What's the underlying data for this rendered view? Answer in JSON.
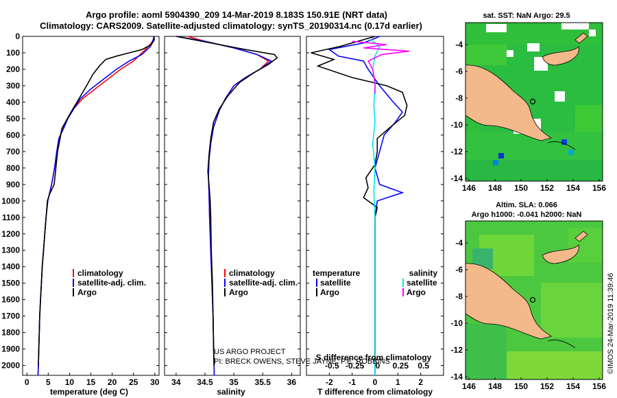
{
  "header": {
    "line1": "Argo profile: aoml 5904390_209 14-Mar-2019 8.183S 150.91E (NRT data)",
    "line2": "Climatology: CARS2009. Satellite-adjusted climatology: synTS_20190314.nc (0.17d earlier)"
  },
  "colors": {
    "climatology": "#ff0000",
    "satellite": "#0000ff",
    "argo": "#000000",
    "sat_salinity": "#00e5ee",
    "argo_salinity_diff": "#ff00ff",
    "land": "#f4b98a"
  },
  "credits": {
    "project": "US ARGO PROJECT",
    "pi": "PI: BRECK OWENS, STEVE JAYNE, P.E. ROBBINS",
    "timestamp": "©IMOS 24-Mar-2019 11:39:46"
  },
  "chart_data": [
    {
      "type": "line",
      "id": "temperature",
      "xlabel": "temperature (deg C)",
      "xlim": [
        -1,
        31
      ],
      "xticks": [
        "0",
        "5",
        "10",
        "15",
        "20",
        "25",
        "30"
      ],
      "ylim": [
        0,
        2060
      ],
      "yticks": [
        "0",
        "100",
        "200",
        "300",
        "400",
        "500",
        "600",
        "700",
        "800",
        "900",
        "1000",
        "1100",
        "1200",
        "1300",
        "1400",
        "1500",
        "1600",
        "1700",
        "1800",
        "1900",
        "2000"
      ],
      "legend": [
        "climatology",
        "satellite-adj. clim.",
        "Argo"
      ],
      "series": [
        {
          "name": "climatology",
          "points": [
            [
              29.9,
              0
            ],
            [
              29.5,
              30
            ],
            [
              28.5,
              60
            ],
            [
              27,
              100
            ],
            [
              25,
              150
            ],
            [
              22,
              200
            ],
            [
              19,
              260
            ],
            [
              16,
              320
            ],
            [
              13,
              380
            ],
            [
              11,
              440
            ],
            [
              9.5,
              500
            ],
            [
              8.5,
              560
            ],
            [
              7.5,
              620
            ],
            [
              7,
              700
            ],
            [
              6.5,
              800
            ],
            [
              5.8,
              900
            ],
            [
              4.9,
              1000
            ],
            [
              4.5,
              1100
            ],
            [
              4.2,
              1200
            ],
            [
              3.9,
              1300
            ],
            [
              3.6,
              1400
            ],
            [
              3.4,
              1500
            ],
            [
              3.2,
              1600
            ],
            [
              3,
              1700
            ],
            [
              2.9,
              1800
            ],
            [
              2.8,
              1900
            ],
            [
              2.7,
              2000
            ],
            [
              2.6,
              2060
            ]
          ]
        },
        {
          "name": "satellite-adj. clim.",
          "points": [
            [
              29.9,
              0
            ],
            [
              29.6,
              20
            ],
            [
              29,
              60
            ],
            [
              27,
              110
            ],
            [
              24,
              150
            ],
            [
              21,
              200
            ],
            [
              18,
              260
            ],
            [
              15,
              320
            ],
            [
              12.5,
              380
            ],
            [
              11,
              440
            ],
            [
              9.6,
              500
            ],
            [
              8.6,
              560
            ],
            [
              7.5,
              620
            ],
            [
              7,
              700
            ],
            [
              6.5,
              800
            ],
            [
              5.8,
              900
            ],
            [
              4.9,
              1000
            ],
            [
              4.5,
              1100
            ],
            [
              4.2,
              1200
            ],
            [
              3.9,
              1300
            ],
            [
              3.6,
              1400
            ],
            [
              3.4,
              1500
            ],
            [
              3.2,
              1600
            ],
            [
              3,
              1700
            ],
            [
              2.9,
              1800
            ],
            [
              2.8,
              1900
            ],
            [
              2.7,
              2000
            ],
            [
              2.6,
              2060
            ]
          ]
        },
        {
          "name": "Argo",
          "points": [
            [
              29.7,
              0
            ],
            [
              29.9,
              20
            ],
            [
              29.2,
              50
            ],
            [
              27,
              80
            ],
            [
              24,
              100
            ],
            [
              21,
              120
            ],
            [
              18.5,
              140
            ],
            [
              17,
              180
            ],
            [
              15.5,
              230
            ],
            [
              14,
              300
            ],
            [
              12.2,
              380
            ],
            [
              10.8,
              440
            ],
            [
              9.5,
              500
            ],
            [
              8.2,
              560
            ],
            [
              7.8,
              620
            ],
            [
              7.2,
              700
            ],
            [
              6.8,
              800
            ],
            [
              6.4,
              900
            ],
            [
              5.3,
              960
            ],
            [
              4.8,
              1000
            ],
            [
              4.5,
              1100
            ],
            [
              4.2,
              1200
            ],
            [
              3.9,
              1300
            ],
            [
              3.6,
              1400
            ],
            [
              3.4,
              1500
            ],
            [
              3.2,
              1600
            ],
            [
              3,
              1700
            ],
            [
              2.9,
              1800
            ],
            [
              2.8,
              1900
            ],
            [
              2.7,
              2000
            ]
          ]
        }
      ]
    },
    {
      "type": "line",
      "id": "salinity",
      "xlabel": "salinity",
      "xlim": [
        33.8,
        36.15
      ],
      "xticks": [
        "34",
        "34.5",
        "35",
        "35.5",
        "36"
      ],
      "ylim": [
        0,
        2060
      ],
      "legend": [
        "climatology",
        "satellite-adj. clim.",
        "Argo"
      ],
      "series": [
        {
          "name": "climatology",
          "points": [
            [
              34.2,
              0
            ],
            [
              34.5,
              30
            ],
            [
              35,
              70
            ],
            [
              35.4,
              110
            ],
            [
              35.6,
              150
            ],
            [
              35.45,
              200
            ],
            [
              35.2,
              250
            ],
            [
              35,
              300
            ],
            [
              34.85,
              380
            ],
            [
              34.75,
              450
            ],
            [
              34.65,
              550
            ],
            [
              34.6,
              650
            ],
            [
              34.57,
              750
            ],
            [
              34.56,
              850
            ],
            [
              34.57,
              950
            ],
            [
              34.58,
              1100
            ],
            [
              34.6,
              1300
            ],
            [
              34.62,
              1500
            ],
            [
              34.64,
              1700
            ],
            [
              34.65,
              1900
            ],
            [
              34.66,
              2060
            ]
          ]
        },
        {
          "name": "satellite-adj. clim.",
          "points": [
            [
              34.0,
              0
            ],
            [
              34.5,
              30
            ],
            [
              35,
              70
            ],
            [
              35.4,
              110
            ],
            [
              35.65,
              150
            ],
            [
              35.45,
              200
            ],
            [
              35.2,
              250
            ],
            [
              35,
              300
            ],
            [
              34.85,
              380
            ],
            [
              34.75,
              450
            ],
            [
              34.65,
              550
            ],
            [
              34.6,
              650
            ],
            [
              34.57,
              750
            ],
            [
              34.56,
              850
            ],
            [
              34.57,
              950
            ],
            [
              34.58,
              1100
            ],
            [
              34.6,
              1300
            ],
            [
              34.62,
              1500
            ],
            [
              34.64,
              1700
            ],
            [
              34.65,
              1900
            ],
            [
              34.66,
              2060
            ]
          ]
        },
        {
          "name": "Argo",
          "points": [
            [
              34.0,
              0
            ],
            [
              34.6,
              40
            ],
            [
              35.2,
              80
            ],
            [
              35.7,
              110
            ],
            [
              35.75,
              130
            ],
            [
              35.6,
              170
            ],
            [
              35.35,
              220
            ],
            [
              35.1,
              280
            ],
            [
              34.9,
              360
            ],
            [
              34.75,
              440
            ],
            [
              34.65,
              520
            ],
            [
              34.6,
              620
            ],
            [
              34.57,
              720
            ],
            [
              34.55,
              820
            ],
            [
              34.57,
              900
            ],
            [
              34.59,
              1000
            ],
            [
              34.6,
              1100
            ],
            [
              34.61,
              1300
            ],
            [
              34.63,
              1500
            ],
            [
              34.64,
              1700
            ],
            [
              34.65,
              1900
            ],
            [
              34.66,
              2000
            ]
          ]
        }
      ]
    },
    {
      "type": "line",
      "id": "difference",
      "xlabel": "T difference from climatology",
      "xlabel2": "S difference from climatology",
      "xlim": [
        -3,
        3
      ],
      "xticks": [
        "-2",
        "-1",
        "0",
        "1",
        "2"
      ],
      "xticks_top": [
        "-0.5",
        "-0.25",
        "0",
        "0.25",
        "0.5"
      ],
      "ylim": [
        0,
        2060
      ],
      "legend_left_title": "temperature",
      "legend_right_title": "salinity",
      "legend_left": [
        "satellite",
        "Argo"
      ],
      "legend_right": [
        "satellite",
        "Argo"
      ],
      "series": [
        {
          "name": "T satellite",
          "points": [
            [
              0.2,
              0
            ],
            [
              -0.5,
              40
            ],
            [
              -2,
              80
            ],
            [
              -1.6,
              120
            ],
            [
              -0.5,
              150
            ],
            [
              -0.3,
              200
            ],
            [
              0.2,
              300
            ],
            [
              0.8,
              400
            ],
            [
              1.2,
              460
            ],
            [
              0.9,
              520
            ],
            [
              0.4,
              600
            ],
            [
              0.2,
              700
            ],
            [
              0,
              800
            ],
            [
              0.2,
              900
            ],
            [
              1.2,
              950
            ],
            [
              0.1,
              1000
            ],
            [
              0,
              1100
            ],
            [
              0,
              1300
            ],
            [
              0,
              1500
            ],
            [
              0,
              1700
            ],
            [
              0,
              1900
            ],
            [
              0,
              2060
            ]
          ]
        },
        {
          "name": "T Argo",
          "points": [
            [
              0,
              0
            ],
            [
              -1.5,
              60
            ],
            [
              -2.8,
              100
            ],
            [
              -1.8,
              140
            ],
            [
              -2.5,
              180
            ],
            [
              -1,
              250
            ],
            [
              0.5,
              300
            ],
            [
              1.2,
              340
            ],
            [
              1.4,
              420
            ],
            [
              1.3,
              480
            ],
            [
              0.6,
              560
            ],
            [
              0.1,
              620
            ],
            [
              0.1,
              700
            ],
            [
              0,
              780
            ],
            [
              -0.4,
              860
            ],
            [
              -0.3,
              920
            ],
            [
              -0.5,
              980
            ],
            [
              0.1,
              1040
            ],
            [
              0,
              1100
            ],
            [
              0,
              1300
            ],
            [
              0,
              1500
            ],
            [
              0,
              1700
            ],
            [
              0,
              1900
            ],
            [
              0,
              2000
            ]
          ]
        },
        {
          "name": "S satellite",
          "points": [
            [
              -0.2,
              20
            ],
            [
              0.2,
              60
            ],
            [
              0,
              120
            ],
            [
              -0.1,
              200
            ],
            [
              0,
              300
            ],
            [
              -0.05,
              420
            ],
            [
              0,
              520
            ],
            [
              -0.1,
              650
            ],
            [
              0,
              800
            ],
            [
              -0.05,
              950
            ],
            [
              0,
              1100
            ],
            [
              0,
              1300
            ],
            [
              0,
              1500
            ],
            [
              0,
              1700
            ],
            [
              0,
              1900
            ],
            [
              0,
              2060
            ]
          ]
        },
        {
          "name": "S Argo",
          "points": [
            [
              -1,
              30
            ],
            [
              0.5,
              50
            ],
            [
              -0.5,
              70
            ],
            [
              1.5,
              90
            ],
            [
              0.3,
              110
            ],
            [
              -0.3,
              150
            ],
            [
              -0.1,
              200
            ],
            [
              0,
              280
            ],
            [
              0,
              350
            ]
          ]
        }
      ]
    },
    {
      "type": "heatmap",
      "id": "sst_map",
      "title": "sat. SST: NaN Argo: 29.5",
      "xticks": [
        "146",
        "148",
        "150",
        "152",
        "154",
        "156"
      ],
      "yticks": [
        "-4",
        "-6",
        "-8",
        "-10",
        "-12",
        "-14"
      ]
    },
    {
      "type": "heatmap",
      "id": "sla_map",
      "title1": "Altim. SLA: 0.066",
      "title2": "Argo h1000: -0.041 h2000: NaN",
      "xticks": [
        "146",
        "148",
        "150",
        "152",
        "154",
        "156"
      ],
      "yticks": [
        "-4",
        "-6",
        "-8",
        "-10",
        "-12",
        "-14"
      ]
    }
  ]
}
